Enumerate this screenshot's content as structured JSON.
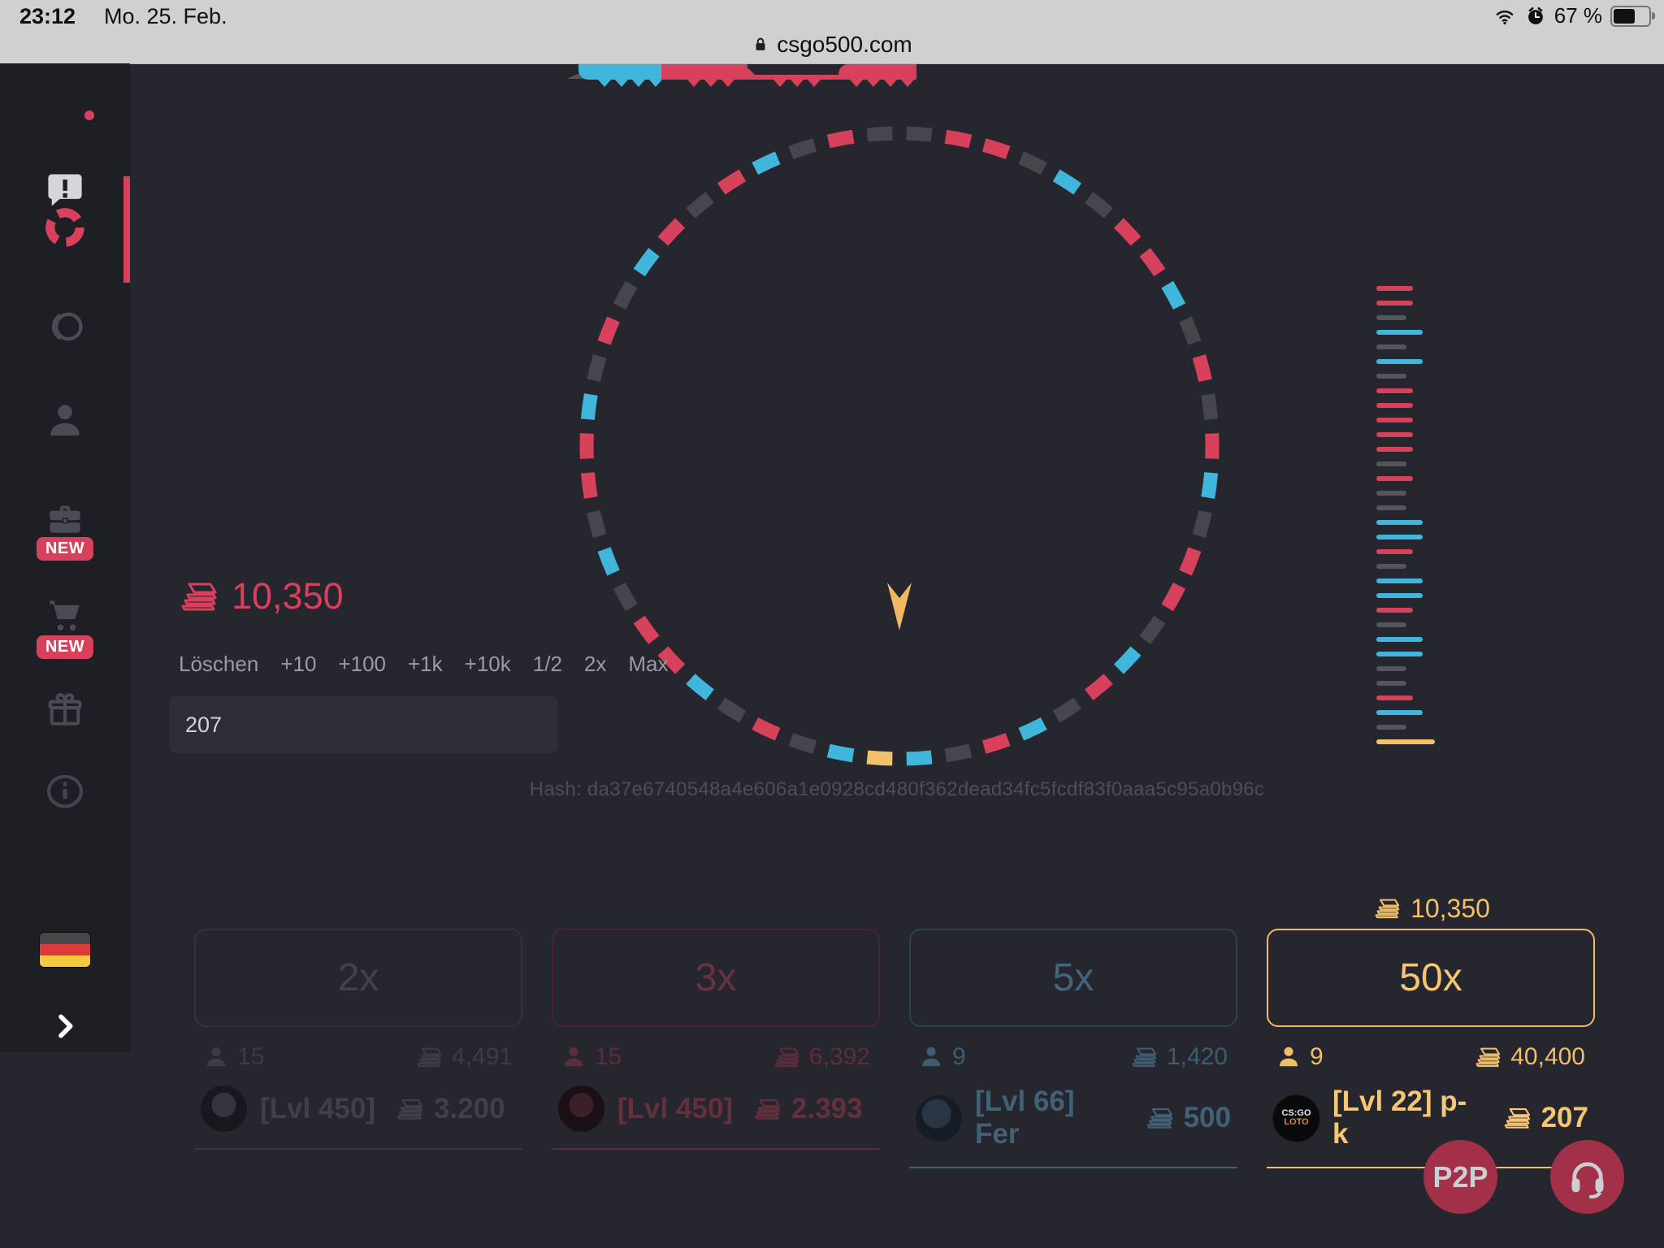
{
  "status": {
    "time": "23:12",
    "date": "Mo. 25. Feb.",
    "battery": "67 %"
  },
  "browser": {
    "url": "csgo500.com"
  },
  "sidebar": {
    "badge_new": "NEW"
  },
  "betting": {
    "balance": "10,350",
    "controls": [
      "Löschen",
      "+10",
      "+100",
      "+1k",
      "+10k",
      "1/2",
      "2x",
      "Max"
    ],
    "input_value": "207",
    "hash": "Hash: da37e6740548a4e606a1e0928cd480f362dead34fc5fcdf83f0aaa5c95a0b96c"
  },
  "wheel": {
    "colors": {
      "red": "#d8415c",
      "blue": "#41b6dd",
      "gray": "#46464d",
      "gold": "#f3c169"
    },
    "segments": [
      "gray",
      "red",
      "red",
      "gray",
      "blue",
      "gray",
      "red",
      "red",
      "blue",
      "gray",
      "red",
      "gray",
      "red",
      "blue",
      "gray",
      "red",
      "red",
      "gray",
      "blue",
      "red",
      "gray",
      "blue",
      "red",
      "gray",
      "blue",
      "gold",
      "blue",
      "gray",
      "red",
      "gray",
      "blue",
      "red",
      "red",
      "gray",
      "blue",
      "gray",
      "red",
      "red",
      "blue",
      "gray",
      "red",
      "gray",
      "blue",
      "red",
      "gray",
      "red",
      "blue",
      "gray",
      "red",
      "gray"
    ]
  },
  "history": {
    "colors": {
      "red": "#d8415c",
      "blue": "#41b6dd",
      "gray": "#55555d",
      "gold": "#f3c169"
    },
    "widths": {
      "red": 45,
      "blue": 57,
      "gray": 37,
      "gold": 72
    },
    "bars": [
      "red",
      "red",
      "gray",
      "blue",
      "gray",
      "blue",
      "gray",
      "red",
      "red",
      "red",
      "red",
      "red",
      "gray",
      "red",
      "gray",
      "gray",
      "blue",
      "blue",
      "red",
      "gray",
      "blue",
      "blue",
      "red",
      "gray",
      "blue",
      "blue",
      "gray",
      "gray",
      "red",
      "blue",
      "gray",
      "gold"
    ]
  },
  "bet_options": [
    {
      "label": "2x",
      "players": "15",
      "total": "4,491",
      "top_user": "[Lvl 450]",
      "top_amount": "3.200",
      "theme": "gray",
      "selected": false
    },
    {
      "label": "3x",
      "players": "15",
      "total": "6,392",
      "top_user": "[Lvl 450]",
      "top_amount": "2.393",
      "theme": "red",
      "selected": false
    },
    {
      "label": "5x",
      "players": "9",
      "total": "1,420",
      "top_user": "[Lvl 66] Fer",
      "top_amount": "500",
      "theme": "blue",
      "selected": false
    },
    {
      "label": "50x",
      "players": "9",
      "total": "40,400",
      "top_user": "[Lvl 22] p-k",
      "top_amount": "207",
      "theme": "gold",
      "selected": true,
      "potential_win": "10,350",
      "avatar_lines": [
        "CS:GO",
        "LOTO"
      ]
    }
  ],
  "floating": {
    "p2p_label": "P2P"
  }
}
